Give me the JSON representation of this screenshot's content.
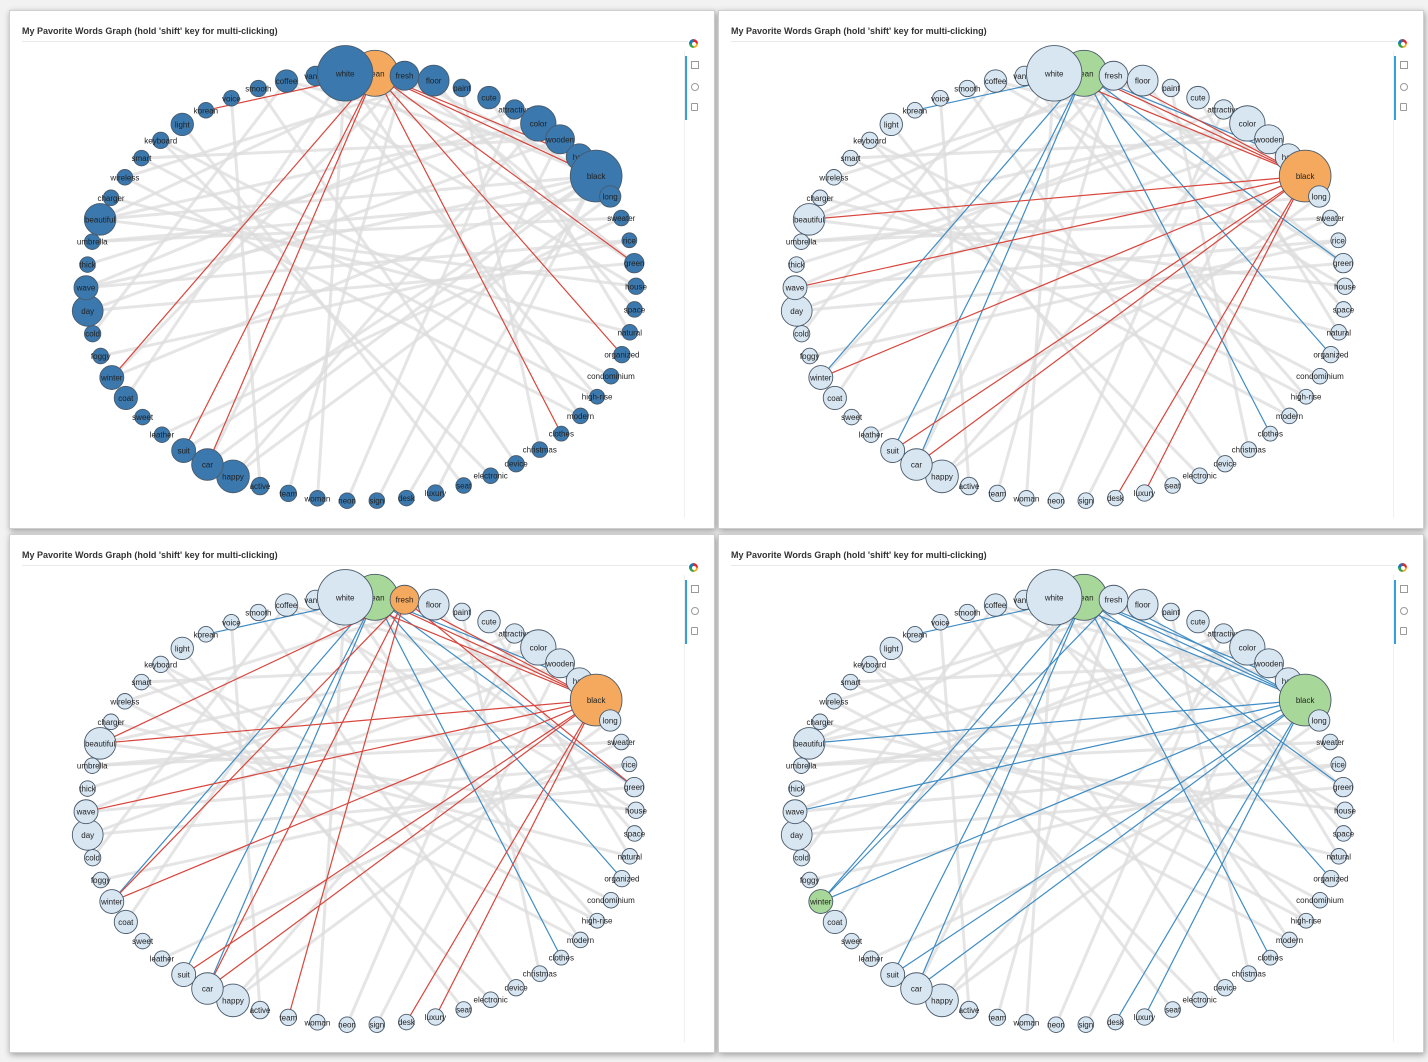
{
  "title": "My Pavorite Words Graph (hold 'shift' key for multi-clicking)",
  "toolbar": {
    "logo": "bokeh-logo-icon",
    "tools": [
      "box-select-icon",
      "wheel-zoom-icon",
      "hover-icon"
    ]
  },
  "colors": {
    "default_node": "#3a78ae",
    "dim_node": "#d8e6f2",
    "selected_node": "#f4a95f",
    "hover_node": "#a8d899",
    "base_edge": "#dcdcdc",
    "selected_edge": "#d8453c",
    "hover_edge": "#3f8cc4"
  },
  "nodes": [
    {
      "label": "clean",
      "size": 1.0
    },
    {
      "label": "fresh",
      "size": 0.55
    },
    {
      "label": "floor",
      "size": 0.6
    },
    {
      "label": "paint",
      "size": 0.25
    },
    {
      "label": "cute",
      "size": 0.38
    },
    {
      "label": "attractive",
      "size": 0.3
    },
    {
      "label": "color",
      "size": 0.72
    },
    {
      "label": "wooden",
      "size": 0.55
    },
    {
      "label": "hair",
      "size": 0.48
    },
    {
      "label": "black",
      "size": 1.15
    },
    {
      "label": "long",
      "size": 0.35
    },
    {
      "label": "sweater",
      "size": 0.2
    },
    {
      "label": "rice",
      "size": 0.18
    },
    {
      "label": "green",
      "size": 0.3
    },
    {
      "label": "house",
      "size": 0.22
    },
    {
      "label": "space",
      "size": 0.2
    },
    {
      "label": "natural",
      "size": 0.2
    },
    {
      "label": "organized",
      "size": 0.22
    },
    {
      "label": "condominium",
      "size": 0.2
    },
    {
      "label": "high-rise",
      "size": 0.18
    },
    {
      "label": "modern",
      "size": 0.2
    },
    {
      "label": "clothes",
      "size": 0.18
    },
    {
      "label": "christmas",
      "size": 0.2
    },
    {
      "label": "device",
      "size": 0.22
    },
    {
      "label": "electronic",
      "size": 0.2
    },
    {
      "label": "seat",
      "size": 0.2
    },
    {
      "label": "luxury",
      "size": 0.22
    },
    {
      "label": "desk",
      "size": 0.2
    },
    {
      "label": "sign",
      "size": 0.2
    },
    {
      "label": "neon",
      "size": 0.2
    },
    {
      "label": "woman",
      "size": 0.2
    },
    {
      "label": "team",
      "size": 0.22
    },
    {
      "label": "active",
      "size": 0.25
    },
    {
      "label": "happy",
      "size": 0.65
    },
    {
      "label": "car",
      "size": 0.62
    },
    {
      "label": "suit",
      "size": 0.42
    },
    {
      "label": "leather",
      "size": 0.2
    },
    {
      "label": "sweet",
      "size": 0.2
    },
    {
      "label": "coat",
      "size": 0.4
    },
    {
      "label": "winter",
      "size": 0.42
    },
    {
      "label": "foggy",
      "size": 0.2
    },
    {
      "label": "cold",
      "size": 0.22
    },
    {
      "label": "day",
      "size": 0.6
    },
    {
      "label": "wave",
      "size": 0.42
    },
    {
      "label": "thick",
      "size": 0.2
    },
    {
      "label": "umbrella",
      "size": 0.2
    },
    {
      "label": "beautiful",
      "size": 0.62
    },
    {
      "label": "charger",
      "size": 0.2
    },
    {
      "label": "wireless",
      "size": 0.2
    },
    {
      "label": "smart",
      "size": 0.2
    },
    {
      "label": "keyboard",
      "size": 0.22
    },
    {
      "label": "light",
      "size": 0.38
    },
    {
      "label": "korean",
      "size": 0.2
    },
    {
      "label": "voice",
      "size": 0.2
    },
    {
      "label": "smooth",
      "size": 0.22
    },
    {
      "label": "coffee",
      "size": 0.38
    },
    {
      "label": "vanilla",
      "size": 0.3
    },
    {
      "label": "white",
      "size": 1.25
    }
  ],
  "edges": [
    [
      0,
      9
    ],
    [
      0,
      13
    ],
    [
      0,
      34
    ],
    [
      0,
      35
    ],
    [
      0,
      39
    ],
    [
      0,
      8
    ],
    [
      0,
      21
    ],
    [
      0,
      52
    ],
    [
      0,
      17
    ],
    [
      9,
      39
    ],
    [
      9,
      34
    ],
    [
      9,
      27
    ],
    [
      9,
      46
    ],
    [
      9,
      43
    ],
    [
      9,
      35
    ],
    [
      9,
      26
    ],
    [
      1,
      9
    ],
    [
      1,
      13
    ],
    [
      1,
      34
    ],
    [
      1,
      39
    ],
    [
      1,
      46
    ],
    [
      1,
      31
    ],
    [
      57,
      13
    ],
    [
      57,
      9
    ],
    [
      57,
      38
    ],
    [
      57,
      20
    ],
    [
      57,
      30
    ],
    [
      55,
      14
    ],
    [
      55,
      8
    ],
    [
      55,
      41
    ],
    [
      6,
      46
    ],
    [
      6,
      44
    ],
    [
      6,
      33
    ],
    [
      7,
      49
    ],
    [
      7,
      42
    ],
    [
      7,
      28
    ],
    [
      2,
      48
    ],
    [
      2,
      15
    ],
    [
      3,
      22
    ],
    [
      4,
      16
    ],
    [
      5,
      43
    ],
    [
      5,
      29
    ],
    [
      42,
      13
    ],
    [
      43,
      12
    ],
    [
      45,
      11
    ],
    [
      46,
      14
    ],
    [
      47,
      16
    ],
    [
      50,
      24
    ],
    [
      51,
      25
    ],
    [
      53,
      32
    ],
    [
      54,
      23
    ],
    [
      56,
      19
    ],
    [
      10,
      33
    ],
    [
      10,
      45
    ],
    [
      11,
      36
    ],
    [
      12,
      40
    ],
    [
      18,
      50
    ],
    [
      19,
      49
    ],
    [
      20,
      48
    ]
  ],
  "panels": [
    {
      "selected": [
        "clean"
      ],
      "hover": [],
      "mode": "first"
    },
    {
      "selected": [
        "black"
      ],
      "hover": [
        "clean"
      ],
      "mode": "second"
    },
    {
      "selected": [
        "black",
        "fresh"
      ],
      "hover": [
        "clean"
      ],
      "mode": "third"
    },
    {
      "selected": [],
      "hover": [
        "clean",
        "black",
        "winter"
      ],
      "mode": "fourth"
    }
  ]
}
